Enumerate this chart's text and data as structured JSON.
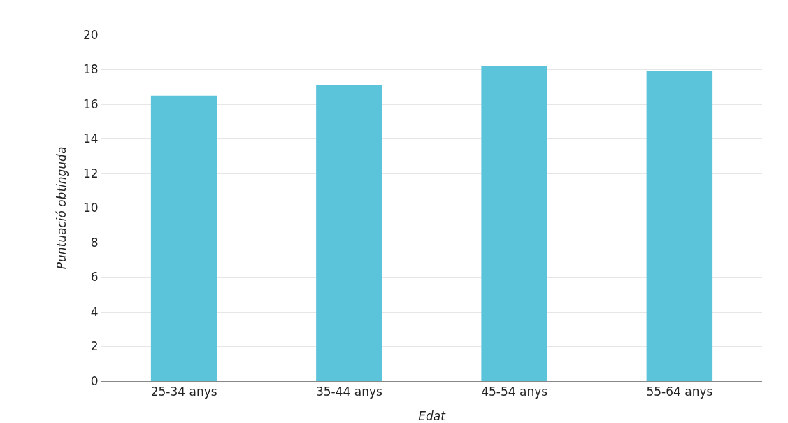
{
  "chart_data": {
    "type": "bar",
    "xlabel": "Edat",
    "ylabel": "Puntuació obtinguda",
    "categories": [
      "25-34 anys",
      "35-44 anys",
      "45-54 anys",
      "55-64 anys"
    ],
    "values": [
      16.5,
      17.1,
      18.2,
      17.9
    ],
    "color": "#5bc4da",
    "ylim": [
      0,
      20
    ],
    "yticks": [
      0,
      2,
      4,
      6,
      8,
      10,
      12,
      14,
      16,
      18,
      20
    ],
    "grid": "y"
  }
}
